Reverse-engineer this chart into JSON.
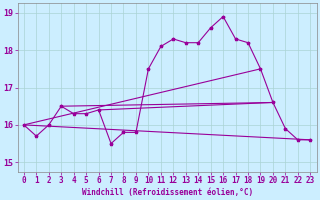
{
  "xlabel": "Windchill (Refroidissement éolien,°C)",
  "bg_color": "#cceeff",
  "line_color": "#990099",
  "xlim": [
    -0.5,
    23.5
  ],
  "ylim": [
    14.75,
    19.25
  ],
  "xticks": [
    0,
    1,
    2,
    3,
    4,
    5,
    6,
    7,
    8,
    9,
    10,
    11,
    12,
    13,
    14,
    15,
    16,
    17,
    18,
    19,
    20,
    21,
    22,
    23
  ],
  "yticks": [
    15,
    16,
    17,
    18,
    19
  ],
  "main_line_x": [
    0,
    1,
    2,
    3,
    4,
    5,
    6,
    7,
    8,
    9,
    10,
    11,
    12,
    13,
    14,
    15,
    16,
    17,
    18,
    19,
    20,
    21,
    22,
    23
  ],
  "main_line_y": [
    16.0,
    15.7,
    16.0,
    16.5,
    16.3,
    16.3,
    16.4,
    15.5,
    15.8,
    15.8,
    17.5,
    18.1,
    18.3,
    18.2,
    18.2,
    18.6,
    18.9,
    18.3,
    18.2,
    17.5,
    16.6,
    15.9,
    15.6,
    15.6
  ],
  "trend_lines": [
    {
      "x": [
        0,
        23
      ],
      "y": [
        16.0,
        15.6
      ]
    },
    {
      "x": [
        0,
        19
      ],
      "y": [
        16.0,
        17.5
      ]
    },
    {
      "x": [
        3,
        20
      ],
      "y": [
        16.5,
        16.6
      ]
    },
    {
      "x": [
        6,
        20
      ],
      "y": [
        16.4,
        16.6
      ]
    }
  ],
  "xlabel_fontsize": 5.5,
  "tick_fontsize": 5.5,
  "ylabel_fontsize": 6,
  "grid_color": "#aad4d4",
  "spine_color": "#888888"
}
